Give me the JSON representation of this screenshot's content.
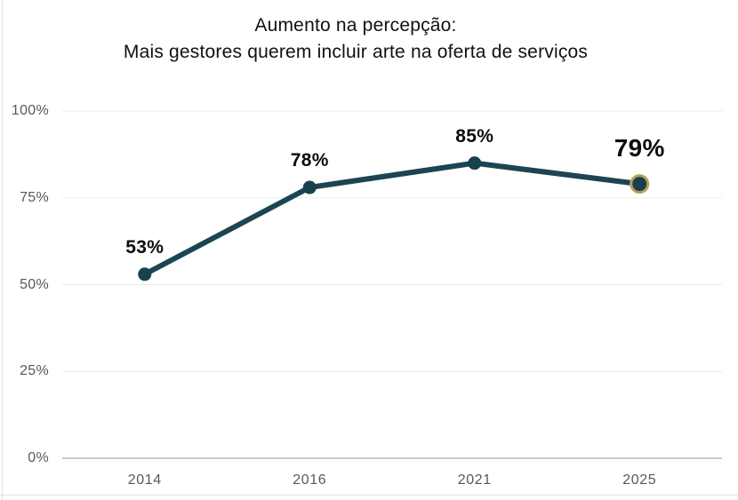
{
  "title": {
    "line1": "Aumento na percepção:",
    "line2": "Mais gestores querem incluir arte na oferta de serviços"
  },
  "chart_data": {
    "type": "line",
    "categories": [
      "2014",
      "2016",
      "2021",
      "2025"
    ],
    "values": [
      53,
      78,
      85,
      79
    ],
    "data_labels": [
      "53%",
      "78%",
      "85%",
      "79%"
    ],
    "highlight_index": 3,
    "ylim": [
      0,
      100
    ],
    "yticks": [
      {
        "value": 0,
        "label": "0%"
      },
      {
        "value": 25,
        "label": "25%"
      },
      {
        "value": 50,
        "label": "50%"
      },
      {
        "value": 75,
        "label": "75%"
      },
      {
        "value": 100,
        "label": "100%"
      }
    ],
    "grid": "horizontal",
    "legend": "none",
    "colors": {
      "line": "#1b4552",
      "marker": "#17414e",
      "highlight_ring": "#bd9e57",
      "data_label": "#0d0d0d",
      "axis_label": "#595959",
      "gridline": "#eaeaea",
      "baseline": "#c9c9c9"
    }
  }
}
